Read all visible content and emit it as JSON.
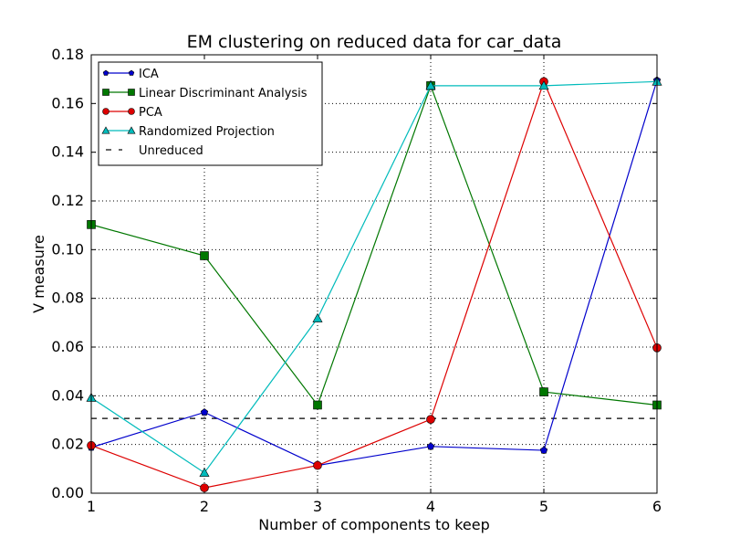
{
  "chart_data": {
    "type": "line",
    "title": "EM clustering on reduced data for car_data",
    "xlabel": "Number of components to keep",
    "ylabel": "V measure",
    "xlim": [
      1,
      6
    ],
    "ylim": [
      0,
      0.18
    ],
    "xticks": [
      1,
      2,
      3,
      4,
      5,
      6
    ],
    "yticks": [
      "0.00",
      "0.02",
      "0.04",
      "0.06",
      "0.08",
      "0.10",
      "0.12",
      "0.14",
      "0.16",
      "0.18"
    ],
    "grid": true,
    "legend_position": "top-left",
    "x": [
      1,
      2,
      3,
      4,
      5,
      6
    ],
    "series": [
      {
        "name": "ICA",
        "color": "#0000cc",
        "marker": "pentagon",
        "values": [
          0.0188,
          0.0332,
          0.0114,
          0.0192,
          0.0176,
          0.1695
        ]
      },
      {
        "name": "Linear Discriminant Analysis",
        "color": "#007700",
        "marker": "square",
        "values": [
          0.1103,
          0.0975,
          0.0362,
          0.1673,
          0.0416,
          0.0362
        ]
      },
      {
        "name": "PCA",
        "color": "#dd0000",
        "marker": "circle",
        "values": [
          0.0196,
          0.0022,
          0.0114,
          0.0303,
          0.169,
          0.0597
        ]
      },
      {
        "name": "Randomized Projection",
        "color": "#00bbbb",
        "marker": "triangle",
        "values": [
          0.0392,
          0.0084,
          0.0718,
          0.1673,
          0.1673,
          0.169
        ]
      }
    ],
    "reference_line": {
      "name": "Unreduced",
      "value": 0.0307,
      "color": "#000000",
      "style": "dashed"
    }
  }
}
